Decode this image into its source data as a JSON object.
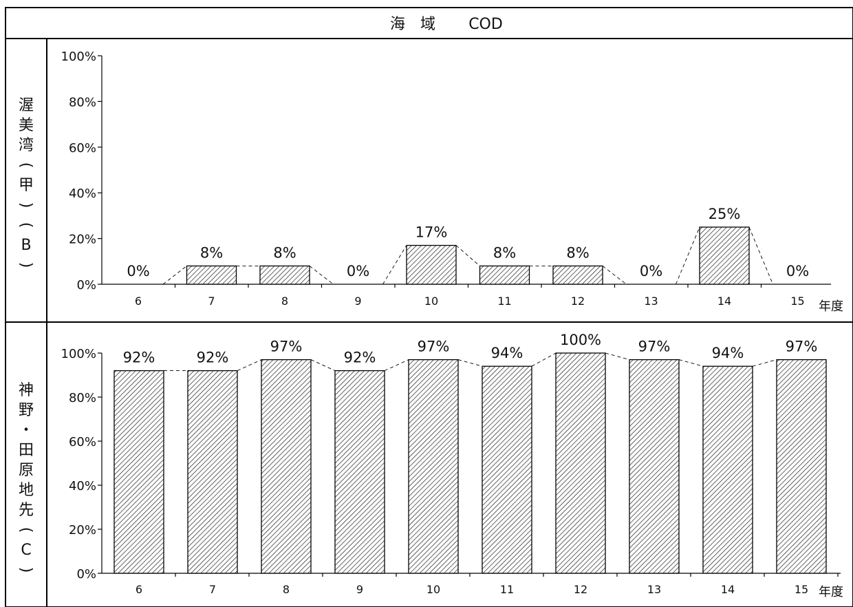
{
  "title": {
    "prefix": "海　域",
    "param": "COD"
  },
  "unit_label": "年度",
  "row_labels": [
    [
      "渥",
      "美",
      "湾",
      "(",
      "甲",
      ")",
      "(",
      "B",
      ")"
    ],
    [
      "神",
      "野",
      "・",
      "田",
      "原",
      "地",
      "先",
      "(",
      "C",
      ")"
    ]
  ],
  "chart_data": [
    {
      "type": "bar",
      "title": "渥美湾(甲)(B)",
      "xlabel": "年度",
      "ylabel": "",
      "categories": [
        "6",
        "7",
        "8",
        "9",
        "10",
        "11",
        "12",
        "13",
        "14",
        "15"
      ],
      "values": [
        0,
        8,
        8,
        0,
        17,
        8,
        8,
        0,
        25,
        0
      ],
      "value_labels": [
        "0%",
        "8%",
        "8%",
        "0%",
        "17%",
        "8%",
        "8%",
        "0%",
        "25%",
        "0%"
      ],
      "ylim": [
        0,
        100
      ],
      "yticks": [
        "0%",
        "20%",
        "40%",
        "60%",
        "80%",
        "100%"
      ],
      "grid": false,
      "hatched": true,
      "connector": "dashed"
    },
    {
      "type": "bar",
      "title": "神野・田原地先(C)",
      "xlabel": "年度",
      "ylabel": "",
      "categories": [
        "6",
        "7",
        "8",
        "9",
        "10",
        "11",
        "12",
        "13",
        "14",
        "15"
      ],
      "values": [
        92,
        92,
        97,
        92,
        97,
        94,
        100,
        97,
        94,
        97
      ],
      "value_labels": [
        "92%",
        "92%",
        "97%",
        "92%",
        "97%",
        "94%",
        "100%",
        "97%",
        "94%",
        "97%"
      ],
      "ylim": [
        0,
        100
      ],
      "yticks": [
        "0%",
        "20%",
        "40%",
        "60%",
        "80%",
        "100%"
      ],
      "grid": false,
      "hatched": true,
      "connector": "dashed"
    }
  ]
}
